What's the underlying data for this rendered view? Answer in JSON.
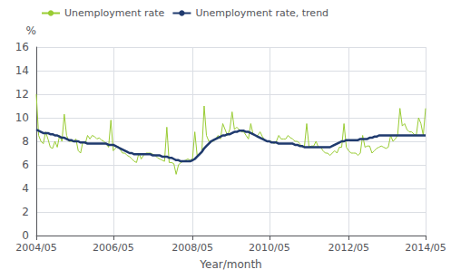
{
  "chart_data": {
    "type": "line",
    "xlabel": "Year/month",
    "ylabel": "%",
    "categories": [
      "2004/05",
      null,
      null,
      null,
      null,
      null,
      null,
      null,
      null,
      null,
      null,
      null,
      null,
      null,
      null,
      null,
      null,
      null,
      null,
      null,
      null,
      null,
      null,
      null,
      null,
      null,
      null,
      null,
      null,
      null,
      null,
      null,
      null,
      "2006/05",
      null,
      null,
      null,
      null,
      null,
      null,
      null,
      null,
      null,
      null,
      null,
      null,
      null,
      null,
      null,
      null,
      null,
      null,
      null,
      null,
      null,
      null,
      null,
      null,
      null,
      null,
      null,
      null,
      null,
      null,
      null,
      null,
      null,
      "2008/05",
      null,
      null,
      null,
      null,
      null,
      null,
      null,
      null,
      null,
      null,
      null,
      null,
      null,
      null,
      null,
      null,
      null,
      null,
      null,
      null,
      null,
      null,
      null,
      null,
      null,
      null,
      null,
      null,
      null,
      null,
      null,
      null,
      "2010/05",
      null,
      null,
      null,
      null,
      null,
      null,
      null,
      null,
      null,
      null,
      null,
      null,
      null,
      null,
      null,
      null,
      null,
      null,
      null,
      null,
      null,
      null,
      null,
      null,
      null,
      null,
      null,
      null,
      null,
      null,
      null,
      null,
      null,
      "2012/05",
      null,
      null,
      null,
      null,
      null,
      null,
      null,
      null,
      null,
      null,
      null,
      null,
      null,
      null,
      null,
      null,
      null,
      null,
      null,
      null,
      null,
      null,
      null,
      null,
      null,
      null,
      null,
      null,
      null,
      null,
      null,
      null,
      "2014/05"
    ],
    "series": [
      {
        "name": "Unemployment rate",
        "color": "#99cc33",
        "values": [
          12.0,
          8.5,
          8.0,
          7.8,
          8.8,
          8.2,
          7.5,
          7.4,
          8.0,
          7.5,
          8.5,
          8.0,
          10.3,
          8.5,
          8.0,
          8.0,
          8.0,
          8.2,
          7.2,
          7.0,
          8.0,
          7.8,
          8.5,
          8.2,
          8.5,
          8.4,
          8.2,
          8.3,
          8.1,
          8.0,
          7.8,
          7.5,
          9.8,
          7.2,
          7.4,
          7.6,
          7.3,
          7.0,
          7.0,
          6.8,
          6.7,
          6.5,
          6.3,
          6.2,
          7.0,
          6.5,
          6.8,
          7.0,
          7.0,
          7.0,
          6.9,
          6.8,
          6.6,
          6.5,
          6.4,
          6.3,
          9.2,
          6.2,
          6.2,
          6.1,
          5.2,
          6.0,
          6.2,
          6.3,
          6.4,
          6.5,
          6.4,
          6.5,
          8.8,
          6.8,
          7.0,
          7.0,
          11.0,
          8.5,
          8.0,
          8.0,
          8.0,
          8.2,
          8.5,
          8.2,
          9.5,
          9.0,
          8.5,
          9.0,
          10.5,
          9.0,
          9.2,
          9.0,
          8.8,
          8.8,
          8.5,
          8.2,
          9.5,
          8.6,
          8.5,
          8.5,
          8.8,
          8.4,
          8.1,
          8.0,
          8.0,
          8.0,
          7.8,
          8.0,
          8.5,
          8.2,
          8.2,
          8.2,
          8.5,
          8.3,
          8.2,
          8.0,
          8.0,
          7.8,
          7.5,
          7.5,
          9.5,
          7.5,
          7.6,
          7.6,
          8.0,
          7.5,
          7.5,
          7.2,
          7.0,
          7.0,
          6.8,
          7.0,
          7.2,
          7.0,
          7.5,
          7.5,
          9.5,
          7.5,
          7.2,
          7.0,
          7.0,
          7.0,
          6.8,
          7.0,
          8.5,
          7.5,
          7.6,
          7.6,
          7.0,
          7.2,
          7.4,
          7.5,
          7.6,
          7.5,
          7.4,
          7.5,
          8.5,
          8.0,
          8.2,
          8.5,
          10.8,
          9.3,
          9.5,
          9.0,
          8.8,
          8.8,
          8.6,
          8.5,
          10.0,
          9.5,
          8.5,
          10.8
        ]
      },
      {
        "name": "Unemployment rate, trend",
        "color": "#1f3a6e",
        "values": [
          9.0,
          8.9,
          8.8,
          8.7,
          8.7,
          8.7,
          8.6,
          8.6,
          8.5,
          8.5,
          8.4,
          8.3,
          8.3,
          8.2,
          8.1,
          8.1,
          8.0,
          8.0,
          8.0,
          7.9,
          7.9,
          7.9,
          7.8,
          7.8,
          7.8,
          7.8,
          7.8,
          7.8,
          7.8,
          7.8,
          7.8,
          7.7,
          7.7,
          7.7,
          7.6,
          7.5,
          7.4,
          7.3,
          7.2,
          7.1,
          7.0,
          7.0,
          6.9,
          6.9,
          6.9,
          6.9,
          6.9,
          6.9,
          6.9,
          6.9,
          6.8,
          6.8,
          6.8,
          6.8,
          6.7,
          6.7,
          6.7,
          6.6,
          6.6,
          6.5,
          6.4,
          6.4,
          6.3,
          6.3,
          6.3,
          6.3,
          6.3,
          6.4,
          6.5,
          6.7,
          6.9,
          7.1,
          7.4,
          7.6,
          7.8,
          8.0,
          8.1,
          8.2,
          8.3,
          8.4,
          8.5,
          8.5,
          8.6,
          8.6,
          8.7,
          8.8,
          8.8,
          8.9,
          8.9,
          8.9,
          8.8,
          8.8,
          8.7,
          8.6,
          8.5,
          8.4,
          8.3,
          8.2,
          8.1,
          8.0,
          8.0,
          7.9,
          7.9,
          7.9,
          7.8,
          7.8,
          7.8,
          7.8,
          7.8,
          7.8,
          7.8,
          7.7,
          7.7,
          7.6,
          7.6,
          7.5,
          7.5,
          7.5,
          7.5,
          7.5,
          7.5,
          7.5,
          7.5,
          7.5,
          7.5,
          7.5,
          7.5,
          7.6,
          7.7,
          7.8,
          7.9,
          8.0,
          8.0,
          8.1,
          8.1,
          8.1,
          8.1,
          8.1,
          8.1,
          8.2,
          8.2,
          8.2,
          8.2,
          8.3,
          8.3,
          8.4,
          8.4,
          8.5,
          8.5,
          8.5,
          8.5,
          8.5,
          8.5,
          8.5,
          8.5,
          8.5,
          8.5,
          8.5,
          8.5,
          8.5,
          8.5,
          8.5,
          8.5,
          8.5,
          8.5,
          8.5,
          8.5,
          8.5
        ]
      }
    ],
    "ylim": [
      0,
      16
    ],
    "yticks": [
      0,
      2,
      4,
      6,
      8,
      10,
      12,
      14,
      16
    ],
    "grid": true,
    "legend": "upper left"
  }
}
